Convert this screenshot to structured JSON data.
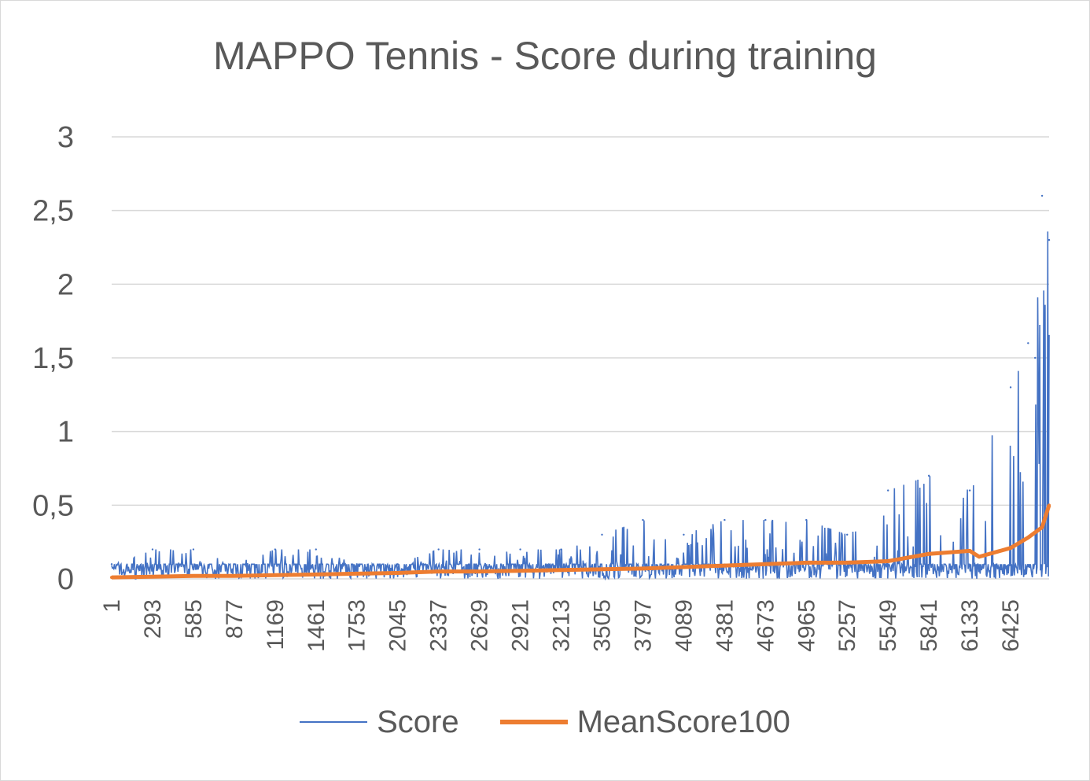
{
  "chart_data": {
    "type": "line",
    "title": "MAPPO Tennis - Score during training",
    "xlabel": "",
    "ylabel": "",
    "ylim": [
      0,
      3
    ],
    "yticks": [
      "0",
      "0,5",
      "1",
      "1,5",
      "2",
      "2,5",
      "3"
    ],
    "xtick_labels": [
      "1",
      "293",
      "585",
      "877",
      "1169",
      "1461",
      "1753",
      "2045",
      "2337",
      "2629",
      "2921",
      "3213",
      "3505",
      "3797",
      "4089",
      "4381",
      "4673",
      "4965",
      "5257",
      "5549",
      "5841",
      "6133",
      "6425"
    ],
    "x_range": [
      1,
      6700
    ],
    "grid": "horizontal",
    "legend_position": "bottom",
    "series": [
      {
        "name": "Score",
        "color": "#4472C4",
        "x": [
          1,
          293,
          585,
          877,
          1169,
          1461,
          1753,
          2045,
          2337,
          2629,
          2921,
          3213,
          3505,
          3797,
          4089,
          4381,
          4673,
          4965,
          5257,
          5549,
          5841,
          6133,
          6425,
          6550,
          6600,
          6650,
          6700
        ],
        "values": [
          0.1,
          0.2,
          0.2,
          0.1,
          0.2,
          0.2,
          0.1,
          0.1,
          0.2,
          0.2,
          0.2,
          0.2,
          0.3,
          0.4,
          0.3,
          0.4,
          0.4,
          0.4,
          0.3,
          0.6,
          0.7,
          0.6,
          1.3,
          1.6,
          1.5,
          2.6,
          2.3
        ]
      },
      {
        "name": "MeanScore100",
        "color": "#ED7D31",
        "x": [
          1,
          293,
          585,
          877,
          1169,
          1461,
          1753,
          2045,
          2337,
          2629,
          2921,
          3213,
          3505,
          3797,
          4089,
          4381,
          4673,
          4965,
          5257,
          5549,
          5841,
          6133,
          6200,
          6425,
          6550,
          6650,
          6700
        ],
        "values": [
          0.01,
          0.015,
          0.02,
          0.02,
          0.025,
          0.03,
          0.035,
          0.04,
          0.05,
          0.05,
          0.055,
          0.06,
          0.065,
          0.07,
          0.08,
          0.09,
          0.1,
          0.11,
          0.11,
          0.12,
          0.17,
          0.19,
          0.15,
          0.21,
          0.28,
          0.35,
          0.5
        ]
      }
    ]
  }
}
